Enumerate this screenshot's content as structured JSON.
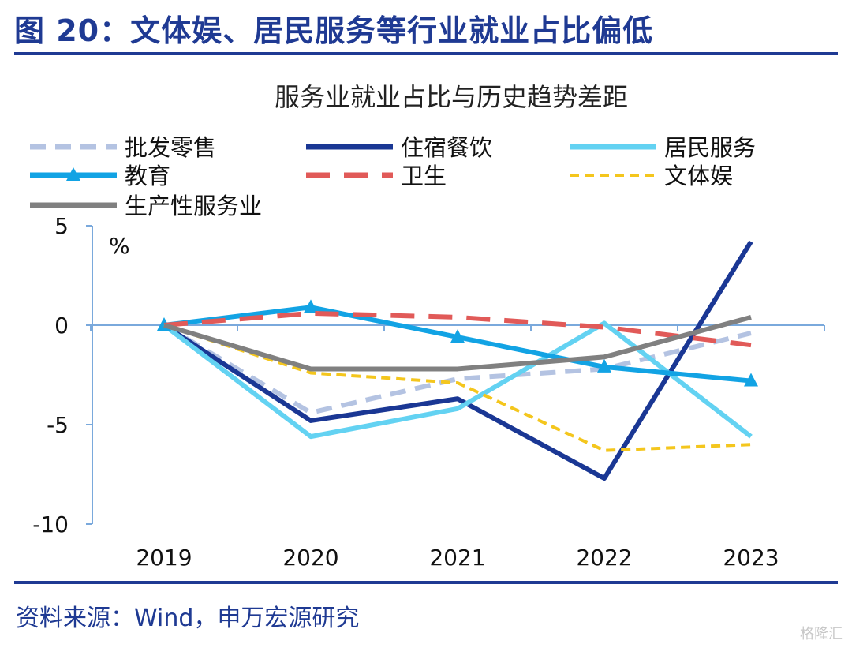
{
  "figure": {
    "title": "图 20：文体娱、居民服务等行业就业占比偏低",
    "source": "资料来源：Wind，申万宏源研究",
    "watermark": "格隆汇"
  },
  "chart_data": {
    "type": "line",
    "title": "服务业就业占比与历史趋势差距",
    "unit": "%",
    "x": [
      "2019",
      "2020",
      "2021",
      "2022",
      "2023"
    ],
    "ylim": [
      -10,
      5
    ],
    "yticks": [
      5,
      0,
      -5,
      -10
    ],
    "ytick_labels": [
      "5",
      "0",
      "-5",
      "-10"
    ],
    "grid": false,
    "legend_position": "top",
    "series": [
      {
        "name": "批发零售",
        "values": [
          0,
          -4.4,
          -2.7,
          -2.2,
          -0.4
        ],
        "color": "#b4c3e2",
        "dash": "dashed",
        "marker": "none"
      },
      {
        "name": "住宿餐饮",
        "values": [
          0,
          -4.8,
          -3.7,
          -7.7,
          4.2
        ],
        "color": "#1a3794",
        "dash": "solid",
        "marker": "none"
      },
      {
        "name": "居民服务",
        "values": [
          0,
          -5.6,
          -4.2,
          0.1,
          -5.6
        ],
        "color": "#63d2f2",
        "dash": "solid",
        "marker": "none"
      },
      {
        "name": "教育",
        "values": [
          0,
          0.9,
          -0.6,
          -2.1,
          -2.8
        ],
        "color": "#12a3e4",
        "dash": "solid",
        "marker": "triangle"
      },
      {
        "name": "卫生",
        "values": [
          0,
          0.6,
          0.4,
          -0.1,
          -1.0
        ],
        "color": "#e15a58",
        "dash": "longdash",
        "marker": "none"
      },
      {
        "name": "文体娱",
        "values": [
          0,
          -2.4,
          -2.9,
          -6.3,
          -6.0
        ],
        "color": "#f4c61d",
        "dash": "dotted",
        "marker": "none"
      },
      {
        "name": "生产性服务业",
        "values": [
          0,
          -2.2,
          -2.2,
          -1.6,
          0.4
        ],
        "color": "#808080",
        "dash": "solid",
        "marker": "none"
      }
    ]
  }
}
